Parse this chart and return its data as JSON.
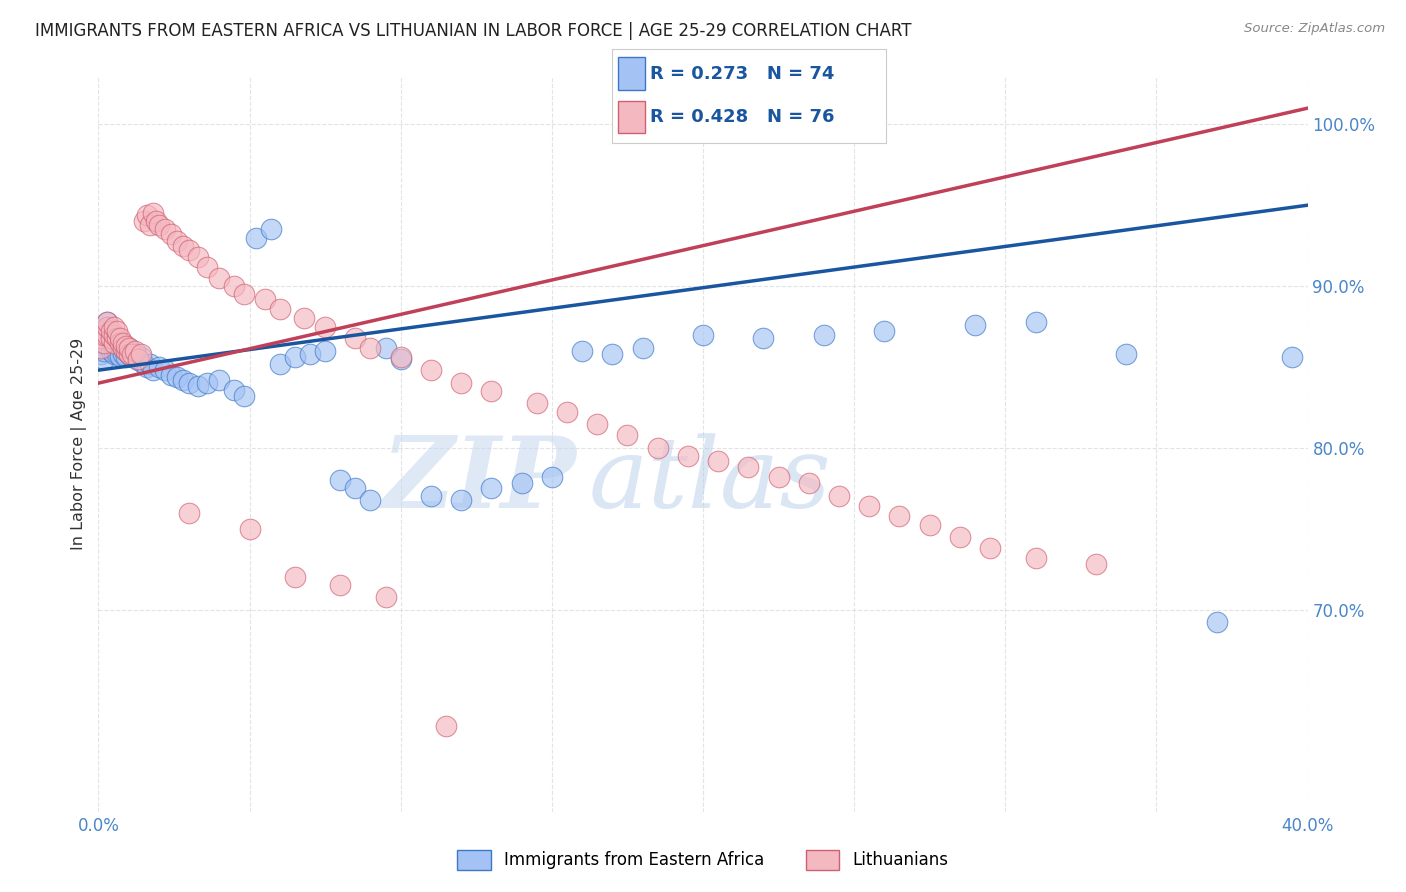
{
  "title": "IMMIGRANTS FROM EASTERN AFRICA VS LITHUANIAN IN LABOR FORCE | AGE 25-29 CORRELATION CHART",
  "source": "Source: ZipAtlas.com",
  "ylabel": "In Labor Force | Age 25-29",
  "xlim_min": 0.0,
  "xlim_max": 0.4,
  "ylim_min": 0.575,
  "ylim_max": 1.03,
  "xtick_positions": [
    0.0,
    0.05,
    0.1,
    0.15,
    0.2,
    0.25,
    0.3,
    0.35,
    0.4
  ],
  "xticklabels": [
    "0.0%",
    "",
    "",
    "",
    "",
    "",
    "",
    "",
    "40.0%"
  ],
  "ytick_positions": [
    0.7,
    0.8,
    0.9,
    1.0
  ],
  "ytick_labels": [
    "70.0%",
    "80.0%",
    "90.0%",
    "100.0%"
  ],
  "blue_scatter_color": "#a4c2f4",
  "blue_edge_color": "#3d78c8",
  "blue_line_color": "#1a56a0",
  "pink_scatter_color": "#f4b8c1",
  "pink_edge_color": "#d06070",
  "pink_line_color": "#c0405a",
  "legend_R_blue": "R = 0.273",
  "legend_N_blue": "N = 74",
  "legend_R_pink": "R = 0.428",
  "legend_N_pink": "N = 76",
  "legend_label_blue": "Immigrants from Eastern Africa",
  "legend_label_pink": "Lithuanians",
  "watermark_zip": "ZIP",
  "watermark_atlas": "atlas",
  "watermark_color_zip": "#c8d8ee",
  "watermark_color_atlas": "#b0c8e8",
  "blue_trend_x0": 0.0,
  "blue_trend_y0": 0.848,
  "blue_trend_x1": 0.4,
  "blue_trend_y1": 0.95,
  "pink_trend_x0": 0.0,
  "pink_trend_y0": 0.84,
  "pink_trend_x1": 0.4,
  "pink_trend_y1": 1.01,
  "blue_x": [
    0.001,
    0.001,
    0.002,
    0.002,
    0.002,
    0.003,
    0.003,
    0.003,
    0.003,
    0.004,
    0.004,
    0.004,
    0.005,
    0.005,
    0.005,
    0.006,
    0.006,
    0.006,
    0.007,
    0.007,
    0.007,
    0.008,
    0.008,
    0.009,
    0.009,
    0.01,
    0.01,
    0.011,
    0.012,
    0.013,
    0.014,
    0.015,
    0.016,
    0.017,
    0.018,
    0.02,
    0.022,
    0.024,
    0.026,
    0.028,
    0.03,
    0.033,
    0.036,
    0.04,
    0.045,
    0.048,
    0.052,
    0.057,
    0.06,
    0.065,
    0.07,
    0.075,
    0.08,
    0.085,
    0.09,
    0.095,
    0.1,
    0.11,
    0.12,
    0.13,
    0.14,
    0.15,
    0.16,
    0.17,
    0.18,
    0.2,
    0.22,
    0.24,
    0.26,
    0.29,
    0.31,
    0.34,
    0.37,
    0.395
  ],
  "blue_y": [
    0.858,
    0.862,
    0.855,
    0.86,
    0.865,
    0.87,
    0.872,
    0.875,
    0.878,
    0.86,
    0.865,
    0.87,
    0.858,
    0.863,
    0.868,
    0.86,
    0.865,
    0.858,
    0.862,
    0.857,
    0.865,
    0.858,
    0.862,
    0.856,
    0.86,
    0.858,
    0.862,
    0.856,
    0.858,
    0.854,
    0.856,
    0.852,
    0.85,
    0.852,
    0.848,
    0.85,
    0.848,
    0.845,
    0.844,
    0.842,
    0.84,
    0.838,
    0.84,
    0.842,
    0.836,
    0.832,
    0.93,
    0.935,
    0.852,
    0.856,
    0.858,
    0.86,
    0.78,
    0.775,
    0.768,
    0.862,
    0.855,
    0.77,
    0.768,
    0.775,
    0.778,
    0.782,
    0.86,
    0.858,
    0.862,
    0.87,
    0.868,
    0.87,
    0.872,
    0.876,
    0.878,
    0.858,
    0.692,
    0.856
  ],
  "pink_x": [
    0.001,
    0.001,
    0.002,
    0.002,
    0.003,
    0.003,
    0.003,
    0.004,
    0.004,
    0.005,
    0.005,
    0.005,
    0.006,
    0.006,
    0.007,
    0.007,
    0.008,
    0.008,
    0.009,
    0.009,
    0.01,
    0.01,
    0.011,
    0.012,
    0.013,
    0.014,
    0.015,
    0.016,
    0.017,
    0.018,
    0.019,
    0.02,
    0.022,
    0.024,
    0.026,
    0.028,
    0.03,
    0.033,
    0.036,
    0.04,
    0.045,
    0.048,
    0.055,
    0.06,
    0.068,
    0.075,
    0.085,
    0.09,
    0.1,
    0.11,
    0.12,
    0.13,
    0.145,
    0.155,
    0.165,
    0.175,
    0.185,
    0.195,
    0.205,
    0.215,
    0.225,
    0.235,
    0.245,
    0.255,
    0.265,
    0.275,
    0.285,
    0.295,
    0.31,
    0.33,
    0.03,
    0.05,
    0.065,
    0.08,
    0.095,
    0.115
  ],
  "pink_y": [
    0.862,
    0.868,
    0.865,
    0.87,
    0.87,
    0.875,
    0.878,
    0.868,
    0.872,
    0.865,
    0.87,
    0.875,
    0.868,
    0.872,
    0.865,
    0.868,
    0.862,
    0.865,
    0.86,
    0.863,
    0.858,
    0.862,
    0.858,
    0.86,
    0.855,
    0.858,
    0.94,
    0.944,
    0.938,
    0.945,
    0.94,
    0.938,
    0.935,
    0.932,
    0.928,
    0.925,
    0.922,
    0.918,
    0.912,
    0.905,
    0.9,
    0.895,
    0.892,
    0.886,
    0.88,
    0.875,
    0.868,
    0.862,
    0.856,
    0.848,
    0.84,
    0.835,
    0.828,
    0.822,
    0.815,
    0.808,
    0.8,
    0.795,
    0.792,
    0.788,
    0.782,
    0.778,
    0.77,
    0.764,
    0.758,
    0.752,
    0.745,
    0.738,
    0.732,
    0.728,
    0.76,
    0.75,
    0.72,
    0.715,
    0.708,
    0.628
  ]
}
